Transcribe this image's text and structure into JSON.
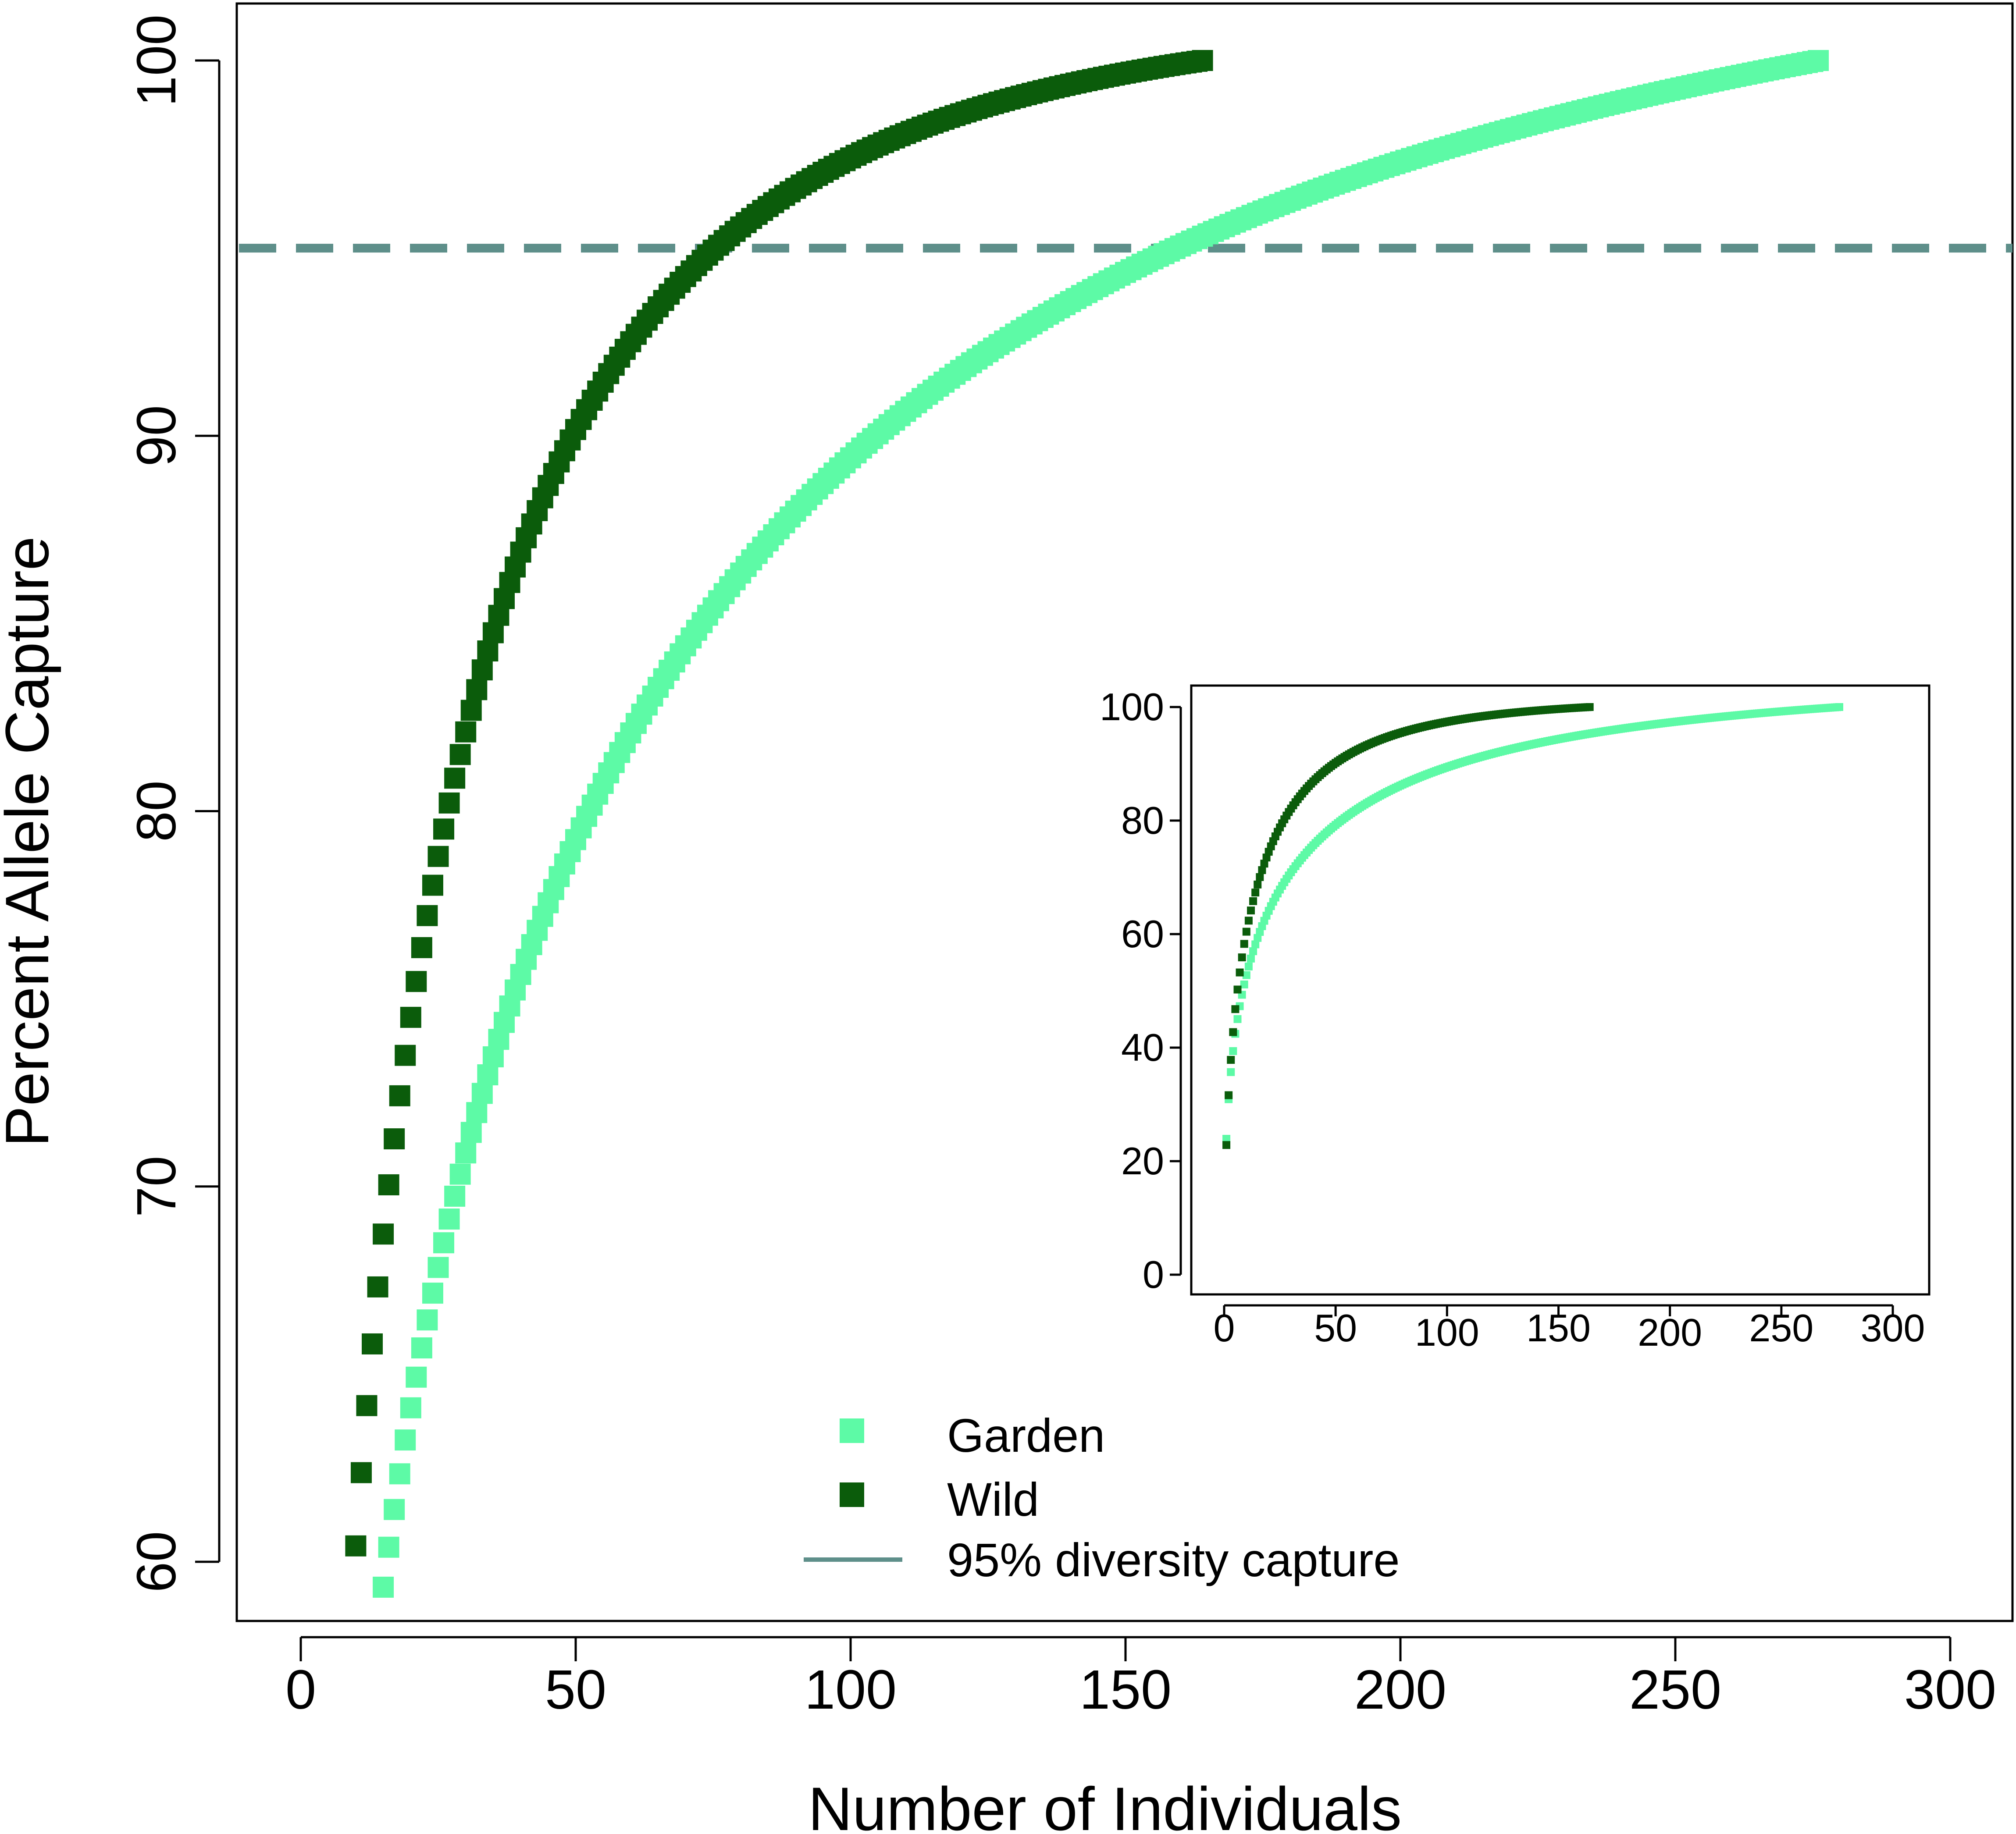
{
  "colors": {
    "garden": "#5dfaa6",
    "wild": "#0b5c0b",
    "threshold": "#5e8f8a",
    "axis": "#000000"
  },
  "chart_data": [
    {
      "type": "scatter",
      "title": "",
      "xlabel": "Number of Individuals",
      "ylabel": "Percent Allele Capture",
      "xlim": [
        -12,
        310
      ],
      "ylim": [
        58.5,
        101.5
      ],
      "x_ticks": [
        0,
        50,
        100,
        150,
        200,
        250,
        300
      ],
      "y_ticks": [
        60,
        70,
        80,
        90,
        100
      ],
      "legend_position": "bottom-center",
      "threshold": {
        "y": 95,
        "label": "95% diversity capture"
      },
      "series": [
        {
          "name": "Garden",
          "n_max": 276,
          "curve_k": 23.8,
          "curve_p": 0.43
        },
        {
          "name": "Wild",
          "n_max": 164,
          "curve_k": 12.0,
          "curve_p": 0.55
        }
      ]
    },
    {
      "type": "scatter",
      "title": "",
      "xlabel": "",
      "ylabel": "",
      "xlim": [
        -6,
        310
      ],
      "ylim": [
        -5,
        104
      ],
      "x_ticks": [
        0,
        50,
        100,
        150,
        200,
        250,
        300
      ],
      "y_ticks": [
        0,
        20,
        40,
        60,
        80,
        100
      ],
      "series": [
        {
          "name": "Garden",
          "n_max": 276,
          "curve_k": 23.8,
          "curve_p": 0.43
        },
        {
          "name": "Wild",
          "n_max": 164,
          "curve_k": 12.0,
          "curve_p": 0.55
        }
      ]
    }
  ]
}
